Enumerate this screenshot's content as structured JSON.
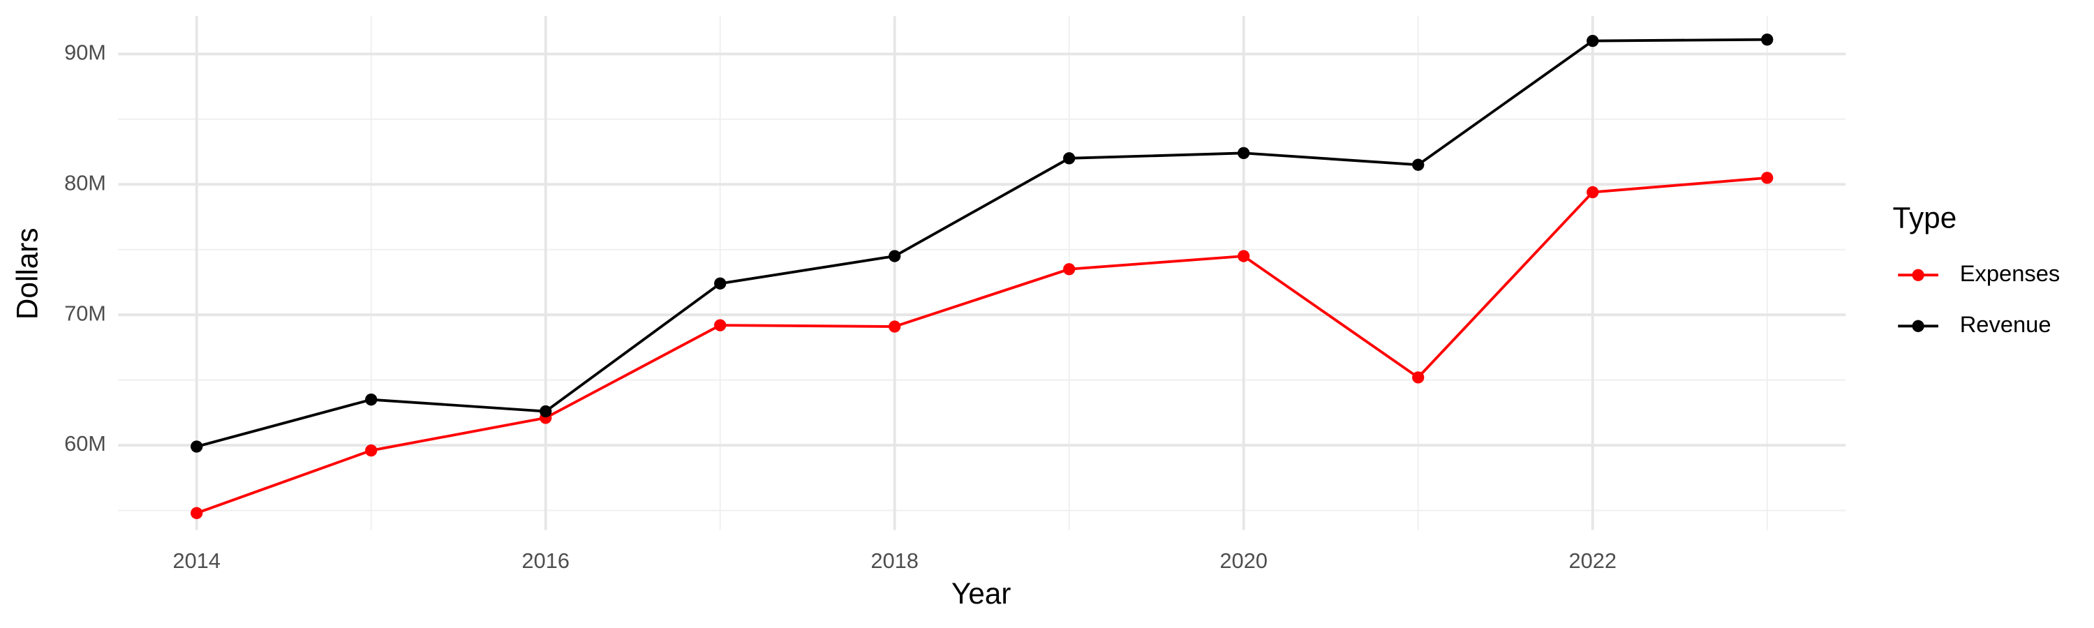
{
  "chart_data": {
    "type": "line",
    "x_label": "Year",
    "y_label": "Dollars",
    "x": [
      2014,
      2015,
      2016,
      2017,
      2018,
      2019,
      2020,
      2021,
      2022,
      2023
    ],
    "series": [
      {
        "name": "Expenses",
        "color": "#ff0000",
        "values": [
          54800000,
          59600000,
          62100000,
          69200000,
          69100000,
          73500000,
          74500000,
          65200000,
          79400000,
          80500000
        ]
      },
      {
        "name": "Revenue",
        "color": "#000000",
        "values": [
          59900000,
          63500000,
          62600000,
          72400000,
          74500000,
          82000000,
          82400000,
          81500000,
          91000000,
          91100000
        ]
      }
    ],
    "xlim": [
      2013.55,
      2023.45
    ],
    "xticks": [
      2014,
      2016,
      2018,
      2020,
      2022
    ],
    "ylim": [
      53500000,
      92900000
    ],
    "yticks": [
      {
        "value": 60000000,
        "label": "60M"
      },
      {
        "value": 70000000,
        "label": "70M"
      },
      {
        "value": 80000000,
        "label": "80M"
      },
      {
        "value": 90000000,
        "label": "90M"
      }
    ],
    "grid": true,
    "legend_title": "Type",
    "legend_position": "right"
  }
}
